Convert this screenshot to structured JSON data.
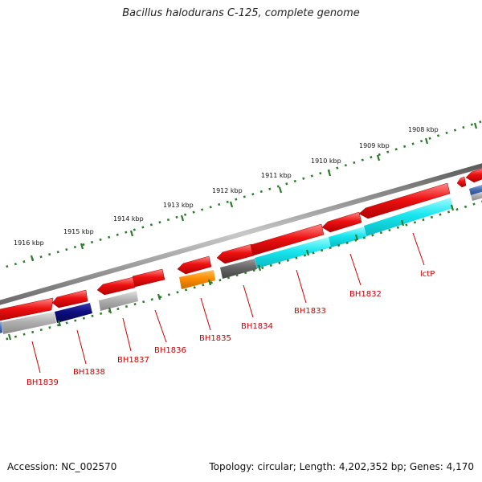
{
  "header": {
    "title": "Bacillus halodurans C-125, complete genome"
  },
  "footer": {
    "accession": "Accession: NC_002570",
    "stats": "Topology: circular; Length: 4,202,352 bp; Genes: 4,170"
  },
  "colors": {
    "forward_gene": "#ee1111",
    "backbone": "#8a8a8a",
    "ticks": "#2a7a2a",
    "label": "#cc0000",
    "cyan": "#18e6ee",
    "navy": "#0d0d80",
    "orange": "#ff8c00",
    "gray_gene": "#aaaaaa",
    "dark_gray_gene": "#666666",
    "steel_blue": "#4a74b8"
  },
  "scale_labels": [
    "1916 kbp",
    "1915 kbp",
    "1914 kbp",
    "1913 kbp",
    "1912 kbp",
    "1911 kbp",
    "1910 kbp",
    "1909 kbp",
    "1908 kbp"
  ],
  "gene_labels": [
    "BH1839",
    "BH1838",
    "BH1837",
    "BH1836",
    "BH1835",
    "BH1834",
    "BH1833",
    "BH1832",
    "lctP"
  ]
}
